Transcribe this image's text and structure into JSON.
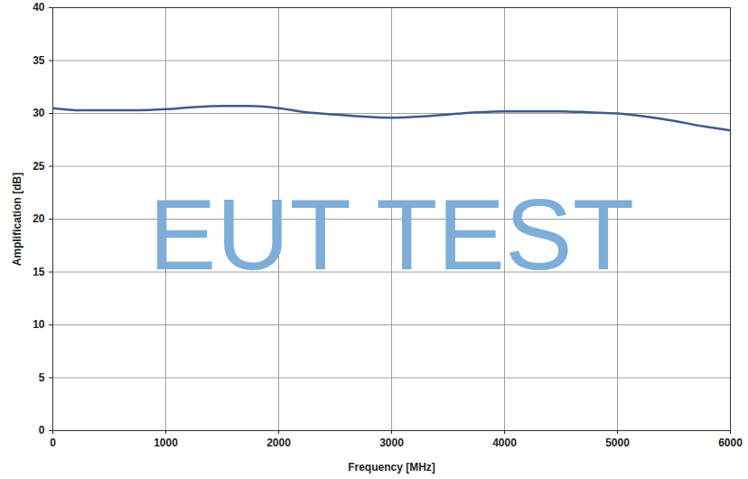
{
  "chart_data": {
    "type": "line",
    "x_label": "Frequency [MHz]",
    "y_label": "Amplification [dB]",
    "annotations": [
      "EUT TEST"
    ],
    "x": [
      0,
      250,
      500,
      750,
      1000,
      1250,
      1500,
      1750,
      2000,
      2250,
      2500,
      2750,
      3000,
      3250,
      3500,
      3750,
      4000,
      4250,
      4500,
      4750,
      5000,
      5250,
      5500,
      5750,
      6000
    ],
    "values": [
      30.5,
      30.3,
      30.3,
      30.3,
      30.4,
      30.6,
      30.7,
      30.7,
      30.5,
      30.1,
      29.9,
      29.7,
      29.6,
      29.7,
      29.9,
      30.1,
      30.2,
      30.2,
      30.2,
      30.1,
      30.0,
      29.7,
      29.3,
      28.8,
      28.4
    ],
    "color": "#3d5b8c",
    "xlim": [
      0,
      6000
    ],
    "xticks": [
      0,
      1000,
      2000,
      3000,
      4000,
      5000,
      6000
    ],
    "ylim": [
      0,
      40
    ],
    "yticks": [
      0,
      5,
      10,
      15,
      20,
      25,
      30,
      35,
      40
    ],
    "grid": true
  }
}
